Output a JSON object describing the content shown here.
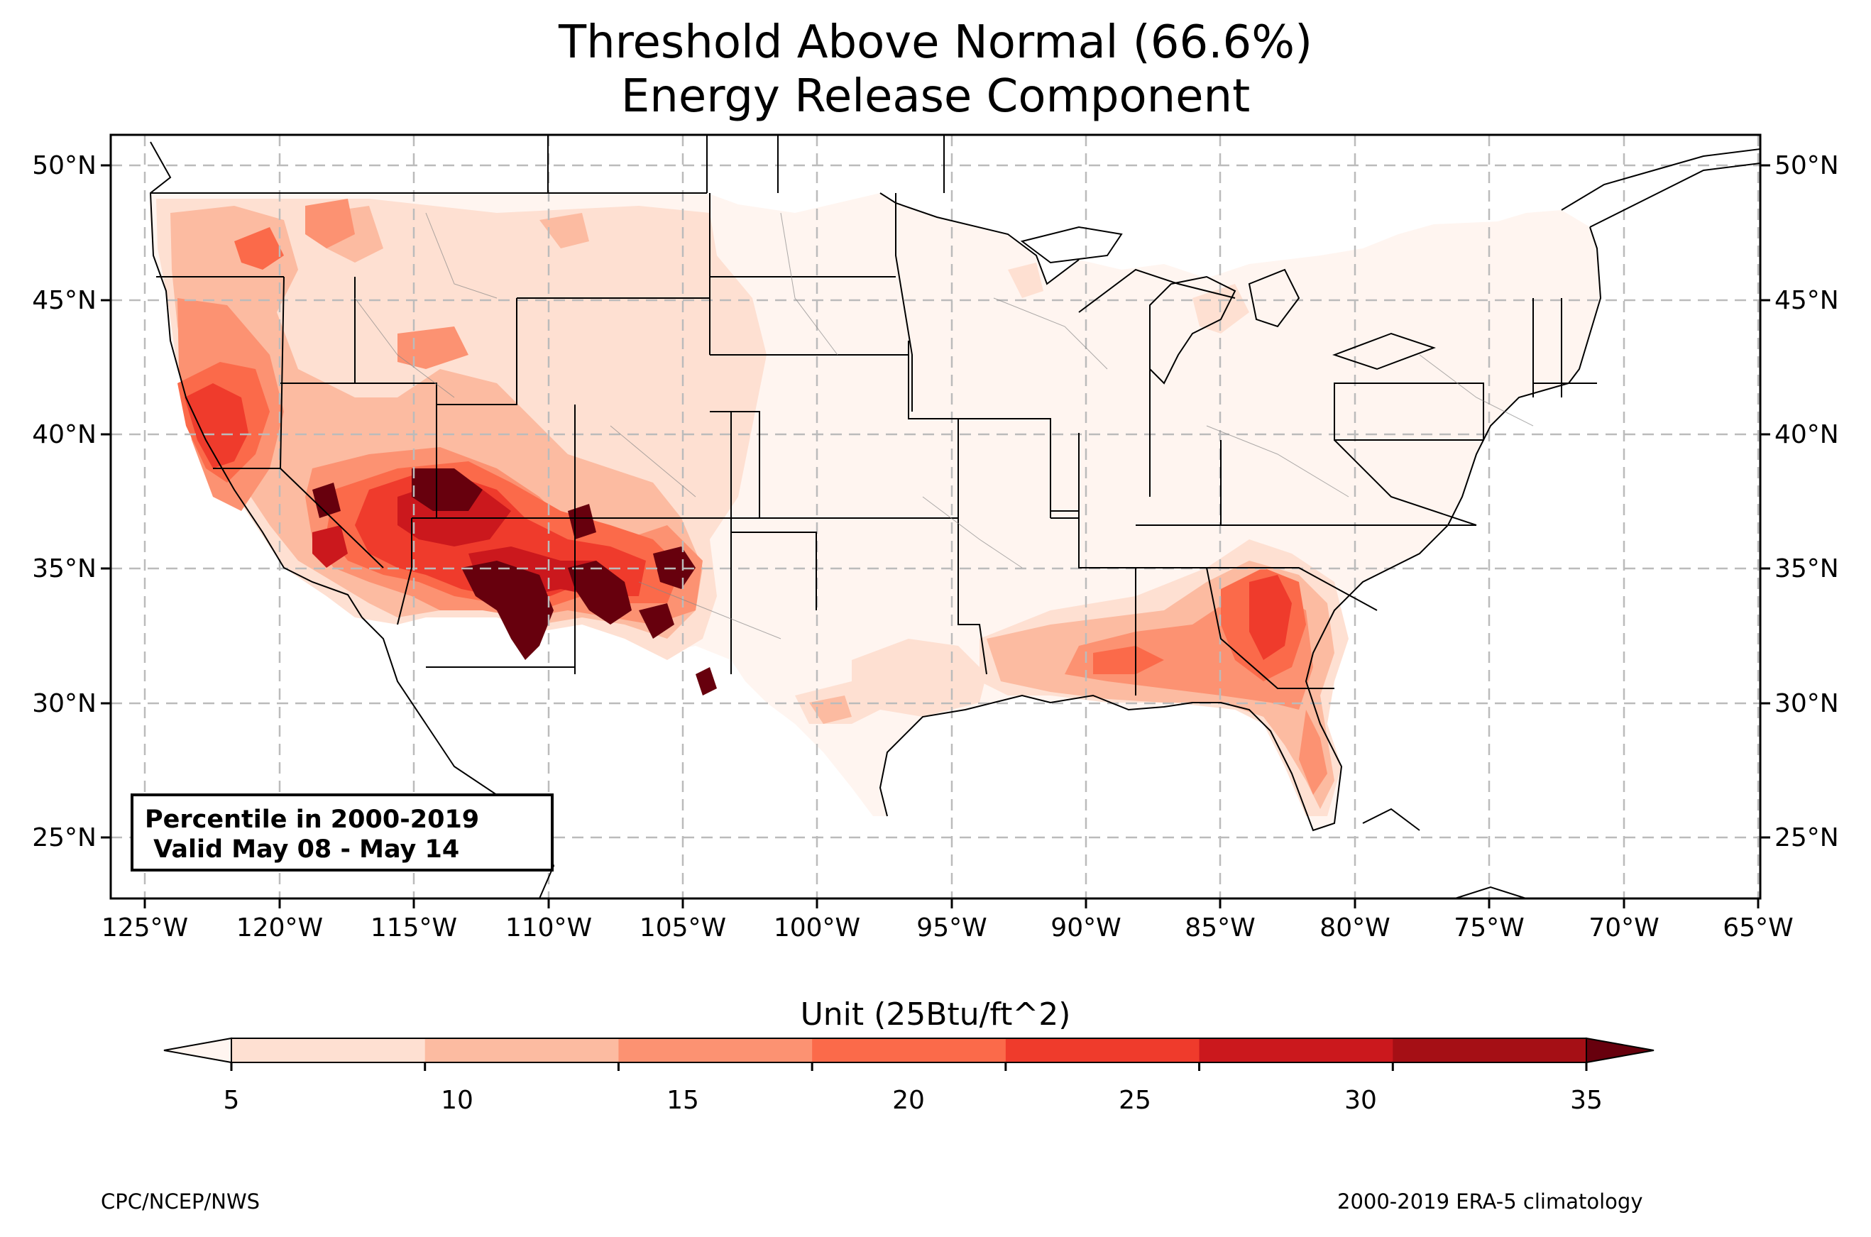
{
  "title": {
    "line1": "Threshold Above Normal (66.6%)",
    "line2": "Energy Release Component"
  },
  "map": {
    "lon_ticks": [
      "125°W",
      "120°W",
      "115°W",
      "110°W",
      "105°W",
      "100°W",
      "95°W",
      "90°W",
      "85°W",
      "80°W",
      "75°W",
      "70°W",
      "65°W"
    ],
    "lat_ticks": [
      "50°N",
      "45°N",
      "40°N",
      "35°N",
      "30°N",
      "25°N"
    ],
    "lon_range": [
      -126.3,
      -64.9
    ],
    "lat_range": [
      22.8,
      51.2
    ],
    "gridlines": true,
    "hot_spots": [
      {
        "region": "Four Corners / Arizona",
        "level": 35
      },
      {
        "region": "Utah-Nevada",
        "level": 35
      },
      {
        "region": "New Mexico",
        "level": 35
      },
      {
        "region": "Northern California",
        "level": 25
      },
      {
        "region": "Georgia / South Carolina",
        "level": 25
      },
      {
        "region": "Gulf Coast",
        "level": 20
      }
    ]
  },
  "info_box": {
    "line1": "Percentile in 2000-2019",
    "line2": " Valid May 08 - May 14"
  },
  "colorbar": {
    "label": "Unit (25Btu/ft^2)",
    "ticks": [
      "5",
      "10",
      "15",
      "20",
      "25",
      "30",
      "35"
    ],
    "colors": [
      "#fee0d2",
      "#fcbba1",
      "#fc9272",
      "#fb6a4a",
      "#ef3b2c",
      "#cb181d",
      "#a50f15"
    ],
    "under_color": "#fff5f0",
    "over_color": "#67000d"
  },
  "footer": {
    "left": "CPC/NCEP/NWS",
    "right": "2000-2019 ERA-5 climatology"
  }
}
